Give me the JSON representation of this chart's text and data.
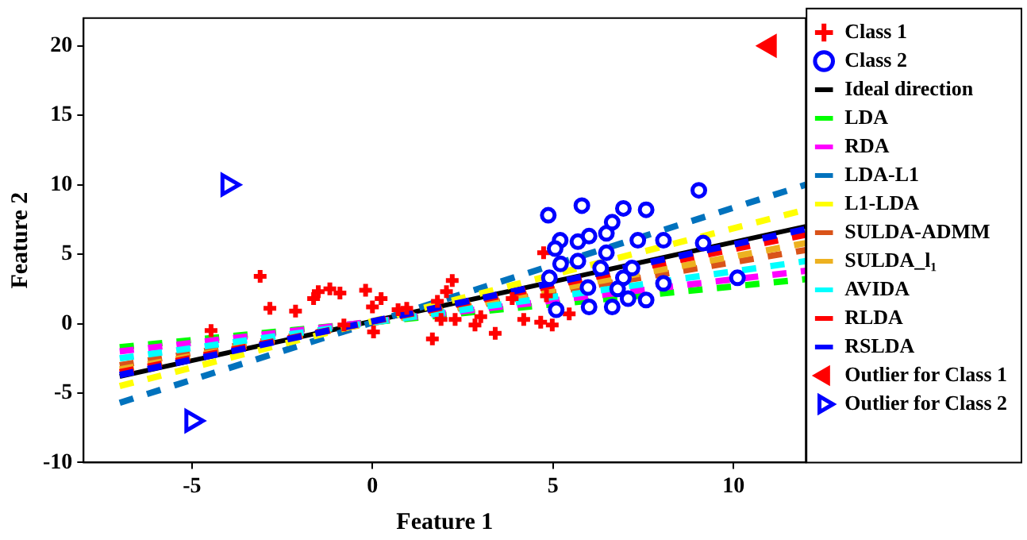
{
  "chart_data": {
    "type": "scatter",
    "xlabel": "Feature 1",
    "ylabel": "Feature 2",
    "xlim": [
      -8,
      12
    ],
    "ylim": [
      -10,
      22
    ],
    "xticks": [
      -5,
      0,
      5,
      10
    ],
    "yticks": [
      -10,
      -5,
      0,
      5,
      10,
      15,
      20
    ],
    "grid": false,
    "legend": "right",
    "series": [
      {
        "name": "Class 1",
        "type": "scatter",
        "marker": "cross",
        "color": "#ff0000",
        "x": [
          -4.47,
          -3.11,
          -2.84,
          -2.13,
          -1.63,
          -1.5,
          -1.18,
          -0.9,
          -0.19,
          0,
          0.24,
          0.03,
          -0.79,
          0.95,
          0.71,
          1.66,
          1.8,
          2.21,
          2.05,
          1.9,
          2.29,
          2.84,
          3.0,
          3.4,
          4.19,
          4.66,
          4.98,
          4.74,
          5.45,
          4.82,
          3.87
        ],
        "values": [
          -0.5,
          3.4,
          1.1,
          0.9,
          1.8,
          2.3,
          2.5,
          2.2,
          2.4,
          1.2,
          1.8,
          -0.6,
          -0.1,
          1.1,
          1.0,
          -1.1,
          1.6,
          3.1,
          2.3,
          0.3,
          0.3,
          -0.1,
          0.5,
          -0.7,
          0.3,
          0.1,
          -0.1,
          5.1,
          0.7,
          2.0,
          1.8
        ]
      },
      {
        "name": "Class 2",
        "type": "scatter",
        "marker": "circle",
        "color": "#0000ff",
        "x": [
          4.87,
          5.8,
          6.95,
          7.58,
          9.04,
          5.2,
          5.06,
          5.21,
          5.69,
          6.0,
          6.48,
          6.64,
          7.35,
          8.06,
          6.48,
          5.69,
          5.97,
          6.0,
          6.64,
          7.08,
          7.58,
          6.95,
          8.06,
          9.16,
          10.11,
          5.09,
          7.19,
          6.32,
          4.9,
          6.79
        ],
        "values": [
          7.8,
          8.5,
          8.3,
          8.2,
          9.6,
          6.0,
          5.4,
          4.3,
          5.9,
          6.3,
          6.5,
          7.3,
          6.0,
          6.0,
          5.1,
          4.5,
          2.6,
          1.2,
          1.2,
          1.8,
          1.7,
          3.3,
          2.9,
          5.8,
          3.3,
          1.0,
          4.0,
          4.0,
          3.3,
          2.5
        ]
      },
      {
        "name": "Ideal direction",
        "type": "line",
        "line_style": "solid",
        "color": "#000000",
        "x": [
          -7,
          12
        ],
        "values": [
          -3.8,
          7.0
        ]
      },
      {
        "name": "LDA",
        "type": "line",
        "line_style": "dashed",
        "color": "#00ff00",
        "x": [
          -7,
          12
        ],
        "values": [
          -1.7,
          3.2
        ]
      },
      {
        "name": "RDA",
        "type": "line",
        "line_style": "dashed",
        "color": "#ff00ff",
        "x": [
          -7,
          12
        ],
        "values": [
          -2.0,
          3.8
        ]
      },
      {
        "name": "LDA-L1",
        "type": "line",
        "line_style": "dashed",
        "color": "#0072bd",
        "x": [
          -7,
          12
        ],
        "values": [
          -5.7,
          10.0
        ]
      },
      {
        "name": "L1-LDA",
        "type": "line",
        "line_style": "dashed",
        "color": "#ffff00",
        "x": [
          -7,
          12
        ],
        "values": [
          -4.5,
          8.2
        ]
      },
      {
        "name": "SULDA-ADMM",
        "type": "line",
        "line_style": "dashed",
        "color": "#d95319",
        "x": [
          -7,
          12
        ],
        "values": [
          -3.0,
          5.3
        ]
      },
      {
        "name": "SULDA_l₁",
        "type": "line",
        "line_style": "dashed",
        "color": "#edb120",
        "x": [
          -7,
          12
        ],
        "values": [
          -3.3,
          5.8
        ]
      },
      {
        "name": "AVIDA",
        "type": "line",
        "line_style": "dashed",
        "color": "#00ffff",
        "x": [
          -7,
          12
        ],
        "values": [
          -2.5,
          4.5
        ]
      },
      {
        "name": "RLDA",
        "type": "line",
        "line_style": "dashed",
        "color": "#ff0000",
        "x": [
          -7,
          12
        ],
        "values": [
          -3.5,
          6.4
        ]
      },
      {
        "name": "RSLDA",
        "type": "line",
        "line_style": "dashed",
        "color": "#0000ff",
        "x": [
          -7,
          12
        ],
        "values": [
          -3.7,
          6.8
        ]
      },
      {
        "name": "Outlier for Class 1",
        "type": "scatter",
        "marker": "triangle-left",
        "color": "#ff0000",
        "x": [
          11
        ],
        "values": [
          20
        ]
      },
      {
        "name": "Outlier for Class 2",
        "type": "scatter",
        "marker": "triangle-right",
        "color": "#0000ff",
        "x": [
          -4,
          -5
        ],
        "values": [
          10,
          -7
        ]
      }
    ]
  }
}
